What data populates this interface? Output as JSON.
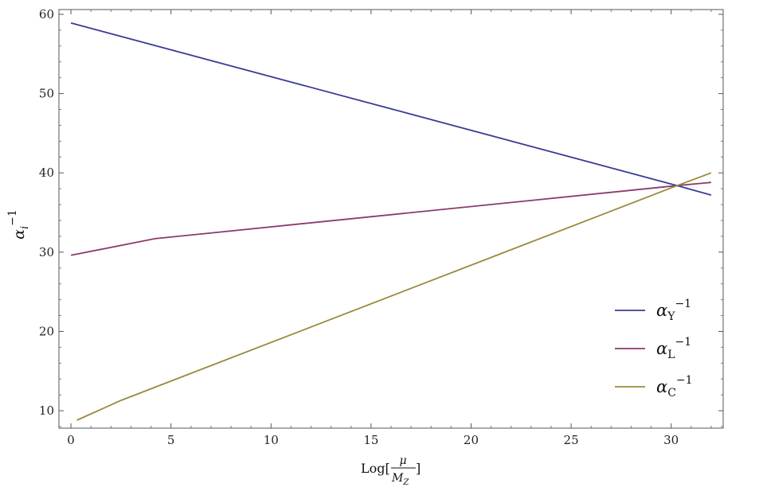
{
  "chart_data": {
    "type": "line",
    "xlabel": {
      "prefix": "Log[",
      "numerator": "μ",
      "denominator": "M",
      "denominator_sub": "Z",
      "suffix": "]"
    },
    "ylabel": {
      "base": "α",
      "sub": "i",
      "sup": "−1"
    },
    "xlim": [
      -0.6,
      32.6
    ],
    "ylim": [
      7.8,
      60.6
    ],
    "x_ticks": [
      0,
      5,
      10,
      15,
      20,
      25,
      30
    ],
    "y_ticks": [
      10,
      20,
      30,
      40,
      50,
      60
    ],
    "grid": false,
    "legend_position": "bottom-right",
    "series": [
      {
        "name": {
          "base": "α",
          "sub": "Y",
          "sup": "−1"
        },
        "color": "#3b3b96",
        "points": [
          [
            0,
            58.9
          ],
          [
            30.3,
            38.4
          ],
          [
            32,
            37.2
          ]
        ]
      },
      {
        "name": {
          "base": "α",
          "sub": "L",
          "sup": "−1"
        },
        "color": "#8c3a6b",
        "points": [
          [
            0,
            29.6
          ],
          [
            4.2,
            31.7
          ],
          [
            30.3,
            38.4
          ],
          [
            32,
            38.8
          ]
        ]
      },
      {
        "name": {
          "base": "α",
          "sub": "C",
          "sup": "−1"
        },
        "color": "#9a8a3c",
        "points": [
          [
            0.3,
            8.8
          ],
          [
            2.5,
            11.3
          ],
          [
            30.3,
            38.4
          ],
          [
            32,
            40.0
          ]
        ]
      }
    ]
  }
}
